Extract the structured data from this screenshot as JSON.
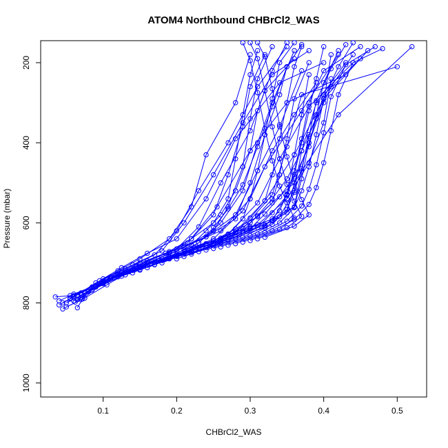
{
  "chart_data": {
    "type": "scatter",
    "title": "ATOM4 Northbound CHBrCl2_WAS",
    "xlabel": "CHBrCl2_WAS",
    "ylabel": "Pressure (mbar)",
    "xlim": [
      0.015,
      0.54
    ],
    "ylim": [
      1035,
      145
    ],
    "y_reversed": true,
    "grid": false,
    "legend": "none",
    "color": "#0000ff",
    "xticks": [
      0.1,
      0.2,
      0.3,
      0.4,
      0.5
    ],
    "xtick_labels": [
      "0.1",
      "0.2",
      "0.3",
      "0.4",
      "0.5"
    ],
    "yticks": [
      200,
      400,
      600,
      800,
      1000
    ],
    "ytick_labels": [
      "200",
      "400",
      "600",
      "800",
      "1000"
    ],
    "series": [
      {
        "x": [
          0.065,
          0.072,
          0.085,
          0.12,
          0.15,
          0.19,
          0.22,
          0.24,
          0.28,
          0.3
        ],
        "y": [
          812,
          790,
          760,
          720,
          690,
          640,
          560,
          430,
          300,
          180
        ]
      },
      {
        "x": [
          0.045,
          0.06,
          0.09,
          0.13,
          0.17,
          0.2,
          0.23,
          0.27,
          0.31,
          0.35
        ],
        "y": [
          800,
          785,
          750,
          715,
          680,
          620,
          520,
          400,
          260,
          160
        ]
      },
      {
        "x": [
          0.055,
          0.07,
          0.1,
          0.14,
          0.18,
          0.21,
          0.25,
          0.29,
          0.33,
          0.38
        ],
        "y": [
          790,
          775,
          740,
          705,
          670,
          600,
          480,
          350,
          230,
          170
        ]
      },
      {
        "x": [
          0.04,
          0.065,
          0.095,
          0.125,
          0.16,
          0.2,
          0.24,
          0.28,
          0.34,
          0.4
        ],
        "y": [
          805,
          780,
          745,
          712,
          676,
          640,
          540,
          390,
          250,
          200
        ]
      },
      {
        "x": [
          0.06,
          0.08,
          0.11,
          0.15,
          0.2,
          0.23,
          0.26,
          0.3,
          0.32,
          0.36
        ],
        "y": [
          795,
          770,
          735,
          700,
          665,
          610,
          500,
          370,
          270,
          190
        ]
      },
      {
        "x": [
          0.05,
          0.075,
          0.105,
          0.135,
          0.175,
          0.215,
          0.255,
          0.3,
          0.35,
          0.43
        ],
        "y": [
          810,
          788,
          755,
          722,
          690,
          650,
          560,
          420,
          300,
          230
        ]
      },
      {
        "x": [
          0.035,
          0.055,
          0.09,
          0.13,
          0.19,
          0.25,
          0.29,
          0.32,
          0.37,
          0.42
        ],
        "y": [
          785,
          782,
          760,
          730,
          690,
          640,
          570,
          460,
          320,
          180
        ]
      },
      {
        "x": [
          0.07,
          0.09,
          0.12,
          0.16,
          0.21,
          0.26,
          0.3,
          0.33,
          0.36,
          0.39
        ],
        "y": [
          780,
          760,
          728,
          695,
          660,
          620,
          540,
          420,
          330,
          250
        ]
      },
      {
        "x": [
          0.045,
          0.07,
          0.1,
          0.145,
          0.19,
          0.24,
          0.28,
          0.31,
          0.34,
          0.37
        ],
        "y": [
          815,
          792,
          752,
          710,
          672,
          635,
          580,
          470,
          360,
          220
        ]
      },
      {
        "x": [
          0.05,
          0.08,
          0.115,
          0.165,
          0.22,
          0.27,
          0.31,
          0.34,
          0.38,
          0.44
        ],
        "y": [
          800,
          772,
          738,
          702,
          668,
          628,
          550,
          440,
          310,
          200
        ]
      },
      {
        "x": [
          0.062,
          0.085,
          0.125,
          0.17,
          0.225,
          0.28,
          0.32,
          0.36,
          0.4,
          0.46
        ],
        "y": [
          798,
          768,
          733,
          698,
          662,
          622,
          545,
          430,
          290,
          170
        ]
      },
      {
        "x": [
          0.055,
          0.09,
          0.13,
          0.18,
          0.24,
          0.29,
          0.33,
          0.35,
          0.37,
          0.5
        ],
        "y": [
          788,
          758,
          724,
          690,
          656,
          615,
          530,
          410,
          280,
          210
        ]
      },
      {
        "x": [
          0.04,
          0.06,
          0.1,
          0.15,
          0.2,
          0.25,
          0.3,
          0.36,
          0.42,
          0.52
        ],
        "y": [
          795,
          778,
          748,
          716,
          684,
          650,
          600,
          500,
          330,
          160
        ]
      },
      {
        "x": [
          0.065,
          0.095,
          0.14,
          0.19,
          0.23,
          0.26,
          0.29,
          0.31,
          0.33,
          0.36
        ],
        "y": [
          792,
          752,
          718,
          685,
          650,
          600,
          520,
          400,
          300,
          170
        ]
      },
      {
        "x": [
          0.06,
          0.1,
          0.15,
          0.2,
          0.26,
          0.31,
          0.35,
          0.38,
          0.4,
          0.41
        ],
        "y": [
          782,
          745,
          710,
          678,
          645,
          605,
          540,
          450,
          350,
          240
        ]
      },
      {
        "x": [
          0.075,
          0.105,
          0.145,
          0.185,
          0.22,
          0.25,
          0.27,
          0.29,
          0.3,
          0.32
        ],
        "y": [
          775,
          742,
          708,
          676,
          640,
          580,
          480,
          360,
          260,
          180
        ]
      },
      {
        "x": [
          0.09,
          0.12,
          0.16,
          0.2,
          0.24,
          0.28,
          0.3,
          0.32,
          0.34,
          0.35
        ],
        "y": [
          760,
          730,
          700,
          670,
          635,
          590,
          500,
          380,
          280,
          210
        ]
      },
      {
        "x": [
          0.08,
          0.11,
          0.17,
          0.22,
          0.27,
          0.32,
          0.36,
          0.37,
          0.38,
          0.4
        ],
        "y": [
          770,
          735,
          704,
          674,
          642,
          612,
          560,
          470,
          380,
          290
        ]
      },
      {
        "x": [
          0.1,
          0.13,
          0.18,
          0.21,
          0.25,
          0.27,
          0.29,
          0.3,
          0.31,
          0.33
        ],
        "y": [
          750,
          720,
          690,
          660,
          620,
          560,
          460,
          340,
          240,
          160
        ]
      },
      {
        "x": [
          0.11,
          0.15,
          0.2,
          0.24,
          0.29,
          0.33,
          0.35,
          0.36,
          0.37,
          0.38
        ],
        "y": [
          740,
          710,
          682,
          652,
          625,
          595,
          530,
          430,
          330,
          230
        ]
      },
      {
        "x": [
          0.12,
          0.16,
          0.19,
          0.22,
          0.25,
          0.27,
          0.28,
          0.29,
          0.3,
          0.31
        ],
        "y": [
          735,
          705,
          675,
          640,
          600,
          540,
          440,
          330,
          230,
          170
        ]
      },
      {
        "x": [
          0.13,
          0.17,
          0.21,
          0.26,
          0.3,
          0.34,
          0.36,
          0.37,
          0.39,
          0.43
        ],
        "y": [
          730,
          698,
          668,
          638,
          610,
          585,
          520,
          420,
          300,
          200
        ]
      },
      {
        "x": [
          0.14,
          0.18,
          0.23,
          0.28,
          0.32,
          0.35,
          0.36,
          0.38,
          0.4,
          0.45
        ],
        "y": [
          725,
          694,
          664,
          634,
          605,
          575,
          500,
          400,
          280,
          190
        ]
      },
      {
        "x": [
          0.15,
          0.19,
          0.22,
          0.24,
          0.26,
          0.28,
          0.3,
          0.31,
          0.33,
          0.35
        ],
        "y": [
          718,
          688,
          655,
          620,
          580,
          520,
          420,
          320,
          220,
          150
        ]
      },
      {
        "x": [
          0.16,
          0.2,
          0.23,
          0.25,
          0.27,
          0.29,
          0.31,
          0.33,
          0.35,
          0.37
        ],
        "y": [
          712,
          682,
          650,
          612,
          565,
          505,
          410,
          310,
          210,
          155
        ]
      },
      {
        "x": [
          0.17,
          0.21,
          0.25,
          0.28,
          0.31,
          0.33,
          0.34,
          0.35,
          0.36,
          0.38
        ],
        "y": [
          705,
          676,
          645,
          615,
          585,
          550,
          480,
          390,
          290,
          200
        ]
      },
      {
        "x": [
          0.18,
          0.22,
          0.26,
          0.3,
          0.33,
          0.36,
          0.37,
          0.38,
          0.4,
          0.41
        ],
        "y": [
          700,
          671,
          642,
          613,
          590,
          560,
          490,
          400,
          300,
          180
        ]
      },
      {
        "x": [
          0.2,
          0.24,
          0.27,
          0.29,
          0.3,
          0.31,
          0.32,
          0.33,
          0.34,
          0.36
        ],
        "y": [
          690,
          662,
          630,
          590,
          540,
          470,
          380,
          290,
          200,
          150
        ]
      },
      {
        "x": [
          0.21,
          0.25,
          0.28,
          0.3,
          0.32,
          0.33,
          0.34,
          0.35,
          0.36,
          0.37
        ],
        "y": [
          684,
          656,
          625,
          588,
          545,
          480,
          390,
          300,
          210,
          160
        ]
      },
      {
        "x": [
          0.22,
          0.26,
          0.29,
          0.31,
          0.33,
          0.35,
          0.37,
          0.39,
          0.41,
          0.44
        ],
        "y": [
          678,
          650,
          620,
          582,
          540,
          490,
          420,
          340,
          260,
          180
        ]
      },
      {
        "x": [
          0.23,
          0.27,
          0.3,
          0.32,
          0.34,
          0.36,
          0.38,
          0.39,
          0.4,
          0.42
        ],
        "y": [
          672,
          645,
          615,
          578,
          535,
          485,
          410,
          330,
          250,
          170
        ]
      },
      {
        "x": [
          0.24,
          0.28,
          0.31,
          0.33,
          0.35,
          0.36,
          0.37,
          0.38,
          0.39,
          0.4
        ],
        "y": [
          668,
          640,
          612,
          575,
          532,
          480,
          400,
          320,
          240,
          160
        ]
      },
      {
        "x": [
          0.25,
          0.29,
          0.32,
          0.34,
          0.35,
          0.36,
          0.37,
          0.38,
          0.4,
          0.45
        ],
        "y": [
          664,
          636,
          608,
          570,
          528,
          470,
          390,
          300,
          220,
          160
        ]
      },
      {
        "x": [
          0.26,
          0.3,
          0.33,
          0.35,
          0.36,
          0.37,
          0.38,
          0.39,
          0.41,
          0.43
        ],
        "y": [
          660,
          632,
          604,
          566,
          524,
          465,
          385,
          295,
          215,
          155
        ]
      },
      {
        "x": [
          0.27,
          0.31,
          0.34,
          0.36,
          0.37,
          0.38,
          0.39,
          0.4,
          0.42,
          0.44
        ],
        "y": [
          656,
          628,
          600,
          562,
          520,
          460,
          380,
          290,
          210,
          150
        ]
      },
      {
        "x": [
          0.28,
          0.32,
          0.35,
          0.37,
          0.38,
          0.39,
          0.4,
          0.41,
          0.43,
          0.47
        ],
        "y": [
          652,
          624,
          596,
          558,
          516,
          455,
          375,
          285,
          205,
          160
        ]
      },
      {
        "x": [
          0.29,
          0.33,
          0.36,
          0.38,
          0.39,
          0.4,
          0.41,
          0.42,
          0.44,
          0.48
        ],
        "y": [
          648,
          620,
          592,
          554,
          512,
          450,
          370,
          280,
          200,
          165
        ]
      },
      {
        "x": [
          0.3,
          0.34,
          0.36,
          0.35,
          0.34,
          0.33,
          0.32,
          0.31,
          0.3,
          0.29
        ],
        "y": [
          644,
          616,
          588,
          550,
          508,
          445,
          365,
          275,
          195,
          150
        ]
      },
      {
        "x": [
          0.31,
          0.35,
          0.37,
          0.36,
          0.35,
          0.34,
          0.33,
          0.32,
          0.31,
          0.3
        ],
        "y": [
          640,
          612,
          584,
          546,
          504,
          440,
          360,
          270,
          190,
          150
        ]
      },
      {
        "x": [
          0.32,
          0.36,
          0.38,
          0.37,
          0.36,
          0.35,
          0.34,
          0.33,
          0.32,
          0.31
        ],
        "y": [
          636,
          608,
          580,
          542,
          500,
          435,
          355,
          265,
          185,
          150
        ]
      }
    ]
  }
}
